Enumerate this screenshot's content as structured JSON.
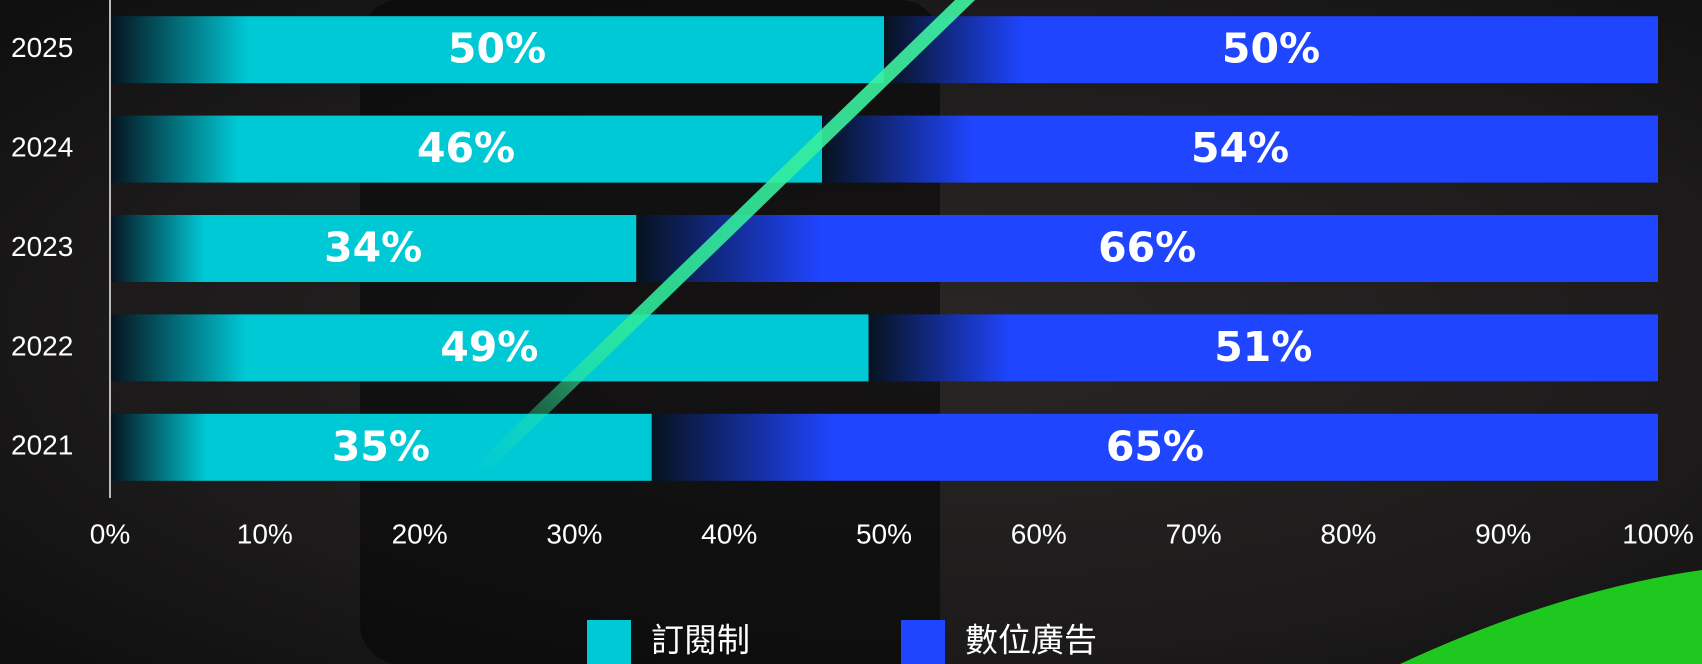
{
  "chart_data": {
    "type": "stacked-barh",
    "categories": [
      "2025",
      "2024",
      "2023",
      "2022",
      "2021"
    ],
    "series": [
      {
        "name": "訂閱制",
        "color": "#00c9d6",
        "values": [
          50,
          46,
          34,
          49,
          35
        ],
        "value_labels": [
          "50%",
          "46%",
          "34%",
          "49%",
          "35%"
        ]
      },
      {
        "name": "數位廣告",
        "color": "#1f45ff",
        "values": [
          50,
          54,
          66,
          51,
          65
        ],
        "value_labels": [
          "50%",
          "54%",
          "66%",
          "51%",
          "65%"
        ]
      }
    ],
    "xlim": [
      0,
      100
    ],
    "xticks": [
      {
        "value": 0,
        "label": "0%"
      },
      {
        "value": 10,
        "label": "10%"
      },
      {
        "value": 20,
        "label": "20%"
      },
      {
        "value": 30,
        "label": "30%"
      },
      {
        "value": 40,
        "label": "40%"
      },
      {
        "value": 50,
        "label": "50%"
      },
      {
        "value": 60,
        "label": "60%"
      },
      {
        "value": 70,
        "label": "70%"
      },
      {
        "value": 80,
        "label": "80%"
      },
      {
        "value": 90,
        "label": "90%"
      },
      {
        "value": 100,
        "label": "100%"
      }
    ],
    "legend": "bottom"
  }
}
